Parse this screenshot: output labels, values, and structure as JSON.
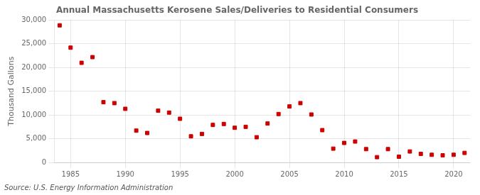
{
  "chart_data": {
    "type": "scatter",
    "title": "Annual Massachusetts Kerosene Sales/Deliveries to Residential Consumers",
    "y_label": "Thousand Gallons",
    "annotations": [
      "Source: U.S. Energy Information Administration"
    ],
    "color": "#CC0000",
    "marker": "square",
    "grid": true,
    "xlim": [
      1983.5,
      2021.5
    ],
    "ylim": [
      0,
      30000
    ],
    "xticks": [
      1985,
      1990,
      1995,
      2000,
      2005,
      2010,
      2015,
      2020
    ],
    "yticks": [
      0,
      {
        "value": 5000,
        "label": "5,000"
      },
      {
        "value": 10000,
        "label": "10,000"
      },
      {
        "value": 15000,
        "label": "15,000"
      },
      {
        "value": 20000,
        "label": "20,000"
      },
      {
        "value": 25000,
        "label": "25,000"
      },
      {
        "value": 30000,
        "label": "30,000"
      }
    ],
    "x": [
      1984,
      1985,
      1986,
      1987,
      1988,
      1989,
      1990,
      1991,
      1992,
      1993,
      1994,
      1995,
      1996,
      1997,
      1998,
      1999,
      2000,
      2001,
      2002,
      2003,
      2004,
      2005,
      2006,
      2007,
      2008,
      2009,
      2010,
      2011,
      2012,
      2013,
      2014,
      2015,
      2016,
      2017,
      2018,
      2019,
      2020,
      2021
    ],
    "values": [
      28900,
      24200,
      21000,
      22200,
      12700,
      12500,
      11300,
      6700,
      6200,
      10900,
      10500,
      9200,
      5500,
      6000,
      7900,
      8100,
      7300,
      7500,
      5300,
      8200,
      10200,
      11800,
      12500,
      10100,
      6800,
      2900,
      4100,
      4400,
      2800,
      1100,
      2800,
      1200,
      2300,
      1800,
      1600,
      1500,
      1600,
      2000
    ]
  }
}
